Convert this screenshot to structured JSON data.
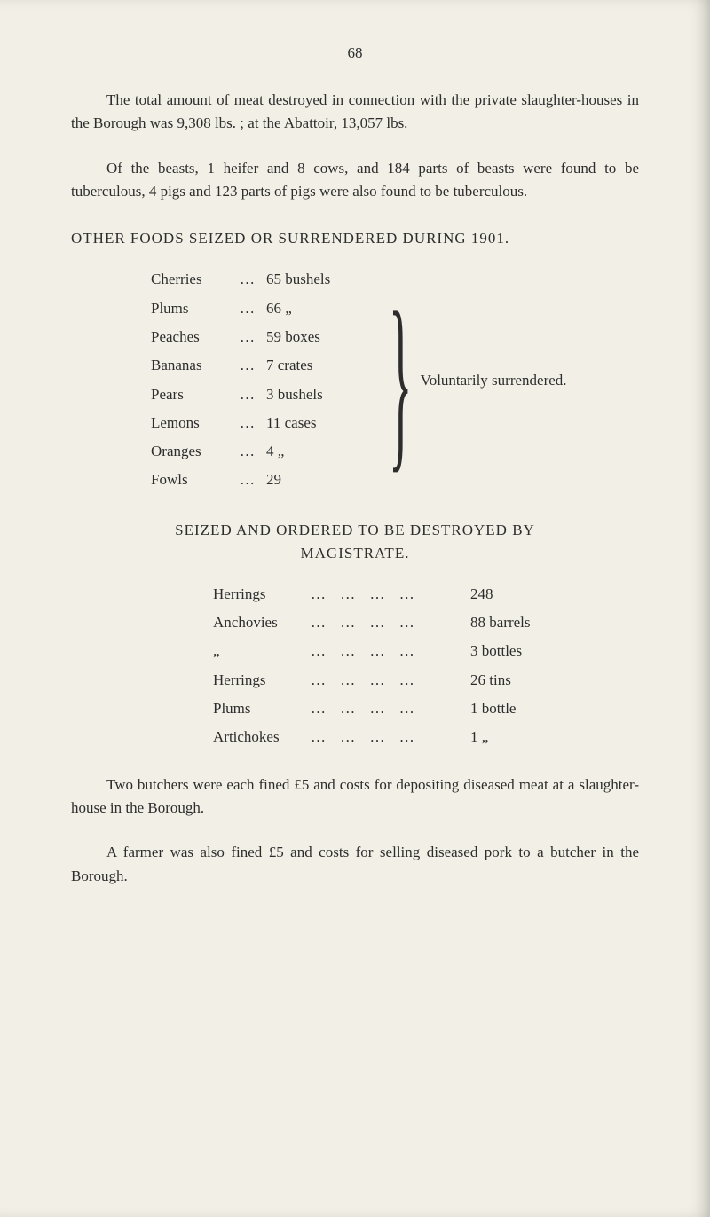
{
  "page_number": "68",
  "para1": "The total amount of meat destroyed in connection with the private slaughter-houses in the Borough was 9,308 lbs. ; at the Abattoir, 13,057 lbs.",
  "para2": "Of the beasts, 1 heifer and 8 cows, and 184 parts of beasts were found to be tuberculous, 4 pigs and 123 parts of pigs were also found to be tuberculous.",
  "heading1": "OTHER FOODS SEIZED OR SURRENDERED DURING 1901.",
  "foods": [
    {
      "name": "Cherries",
      "qty": "65 bushels"
    },
    {
      "name": "Plums",
      "qty": "66     „"
    },
    {
      "name": "Peaches",
      "qty": "59 boxes"
    },
    {
      "name": "Bananas",
      "qty": "7 crates"
    },
    {
      "name": "Pears",
      "qty": "3 bushels"
    },
    {
      "name": "Lemons",
      "qty": "11 cases"
    },
    {
      "name": "Oranges",
      "qty": "4     „"
    },
    {
      "name": "Fowls",
      "qty": "29"
    }
  ],
  "voluntarily": "Voluntarily surrendered.",
  "heading2a": "SEIZED AND ORDERED TO BE DESTROYED BY",
  "heading2b": "MAGISTRATE.",
  "destroyed": [
    {
      "name": "Herrings",
      "val": "248"
    },
    {
      "name": "Anchovies",
      "val": "88 barrels"
    },
    {
      "name": "„",
      "val": "3 bottles"
    },
    {
      "name": "Herrings",
      "val": "26 tins"
    },
    {
      "name": "Plums",
      "val": "1 bottle"
    },
    {
      "name": "Artichokes",
      "val": "1   „"
    }
  ],
  "para3": "Two butchers were each fined £5 and costs for depositing diseased meat at a slaughter-house in the Borough.",
  "para4": "A farmer was also fined £5 and costs for selling diseased pork to a butcher in the Borough.",
  "dots": "…"
}
